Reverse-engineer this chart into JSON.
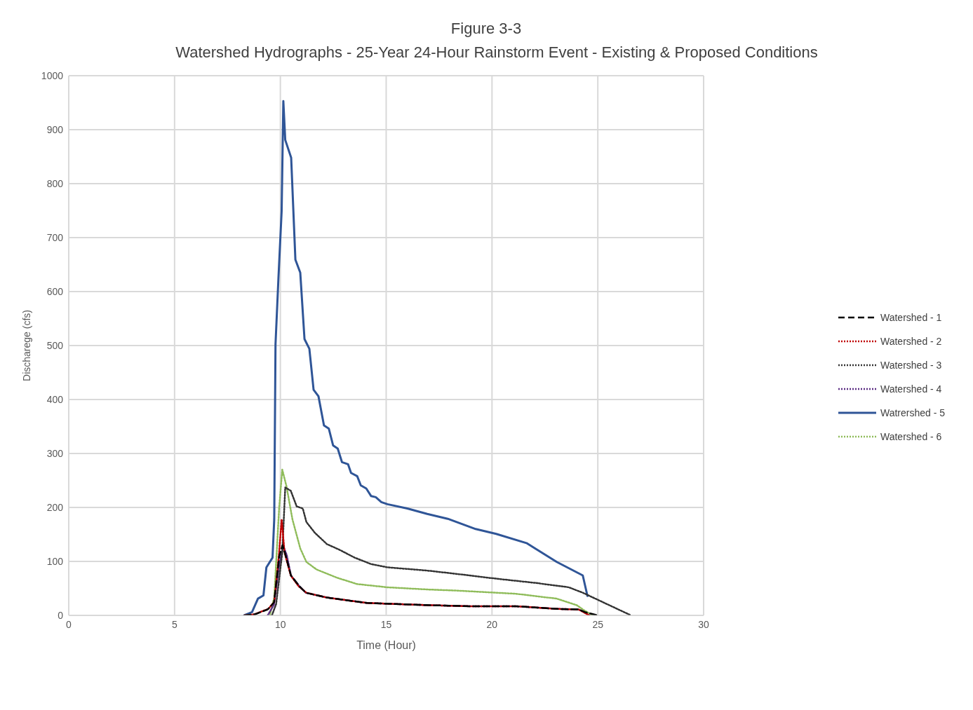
{
  "chart_data": {
    "type": "line",
    "title": "Figure 3-3",
    "subtitle": "Watershed Hydrographs - 25-Year 24-Hour Rainstorm Event - Existing & Proposed Conditions",
    "xlabel": "Time (Hour)",
    "ylabel": "Discharege (cfs)",
    "xlim": [
      0,
      30
    ],
    "xticks": [
      0,
      5,
      10,
      15,
      20,
      25,
      30
    ],
    "ylim": [
      0,
      1000
    ],
    "yticks": [
      0,
      100,
      200,
      300,
      400,
      500,
      600,
      700,
      800,
      900,
      1000
    ],
    "grid": true,
    "legend": "right",
    "marker": "none",
    "series": [
      {
        "name": "Watershed - 1",
        "color": "#000000",
        "line_style": "dashed",
        "x": [
          8.3,
          8.8,
          9.4,
          9.7,
          9.95,
          10.1,
          10.2,
          10.5,
          10.9,
          11.2,
          12.2,
          14.1,
          16.9,
          18.9,
          21.1,
          23.1,
          24.1,
          24.4,
          24.8,
          25.0
        ],
        "values": [
          0,
          2,
          11,
          24,
          110,
          130,
          118,
          74,
          54,
          42,
          33,
          23,
          19,
          17,
          17,
          12,
          11,
          6,
          2,
          0
        ]
      },
      {
        "name": "Watershed - 2",
        "color": "#c00000",
        "line_style": "dotted",
        "x": [
          8.3,
          8.77,
          9.43,
          9.71,
          9.94,
          10.06,
          10.2,
          10.49,
          10.86,
          11.23,
          12.2,
          14.09,
          16.94,
          18.86,
          21.14,
          23.06,
          24.09,
          24.37,
          24.6
        ],
        "values": [
          0,
          2,
          12,
          25,
          116,
          178,
          116,
          74,
          54,
          42,
          33,
          23,
          19,
          17,
          17,
          12,
          11,
          5,
          0
        ]
      },
      {
        "name": "Watershed - 3",
        "color": "#333333",
        "line_style": "dotted",
        "x": [
          9.6,
          9.8,
          10.09,
          10.23,
          10.49,
          10.77,
          11.06,
          11.23,
          11.63,
          12.2,
          12.77,
          13.51,
          14.29,
          15.06,
          16.94,
          18.29,
          20.2,
          22.09,
          23.63,
          24.29,
          24.94,
          26.57
        ],
        "values": [
          0,
          21,
          116,
          237,
          231,
          202,
          198,
          173,
          153,
          132,
          122,
          107,
          95,
          89,
          83,
          77,
          68,
          60,
          52,
          42,
          30,
          0
        ]
      },
      {
        "name": "Watershed - 4",
        "color": "#5b2c83",
        "line_style": "dotted",
        "x": [
          9.4,
          9.7,
          9.95,
          10.14,
          10.3,
          10.5,
          10.9,
          11.2,
          12.2,
          14.1,
          16.9,
          18.9,
          21.1,
          23.1,
          24.1,
          24.4,
          24.6
        ],
        "values": [
          0,
          20,
          95,
          128,
          112,
          74,
          54,
          42,
          33,
          23,
          19,
          17,
          17,
          12,
          11,
          5,
          0
        ]
      },
      {
        "name": "Watrershed - 5",
        "color": "#2f5597",
        "line_style": "solid",
        "x": [
          8.29,
          8.66,
          8.94,
          9.2,
          9.34,
          9.63,
          9.71,
          9.77,
          9.91,
          10.06,
          10.14,
          10.23,
          10.51,
          10.71,
          10.94,
          11.14,
          11.37,
          11.57,
          11.8,
          12.06,
          12.29,
          12.49,
          12.71,
          12.91,
          13.2,
          13.34,
          13.63,
          13.8,
          14.06,
          14.29,
          14.51,
          14.77,
          15.06,
          16.0,
          16.94,
          17.91,
          19.23,
          20.2,
          21.63,
          23.06,
          24.29,
          24.51
        ],
        "values": [
          0,
          6,
          31,
          37,
          89,
          107,
          178,
          502,
          626,
          749,
          953,
          881,
          848,
          659,
          635,
          512,
          494,
          418,
          406,
          352,
          346,
          315,
          309,
          284,
          280,
          264,
          258,
          241,
          235,
          221,
          219,
          210,
          206,
          198,
          188,
          179,
          160,
          151,
          134,
          99,
          74,
          36
        ]
      },
      {
        "name": "Watershed - 6",
        "color": "#8fbc5a",
        "line_style": "dotted",
        "x": [
          9.5,
          9.71,
          9.94,
          10.09,
          10.29,
          10.57,
          10.94,
          11.23,
          11.71,
          12.66,
          13.63,
          15.06,
          16.94,
          18.29,
          21.14,
          23.06,
          24.0,
          24.37,
          24.77
        ],
        "values": [
          0,
          33,
          198,
          270,
          239,
          178,
          124,
          99,
          85,
          70,
          58,
          52,
          48,
          46,
          40,
          31,
          19,
          9,
          0
        ]
      }
    ]
  }
}
